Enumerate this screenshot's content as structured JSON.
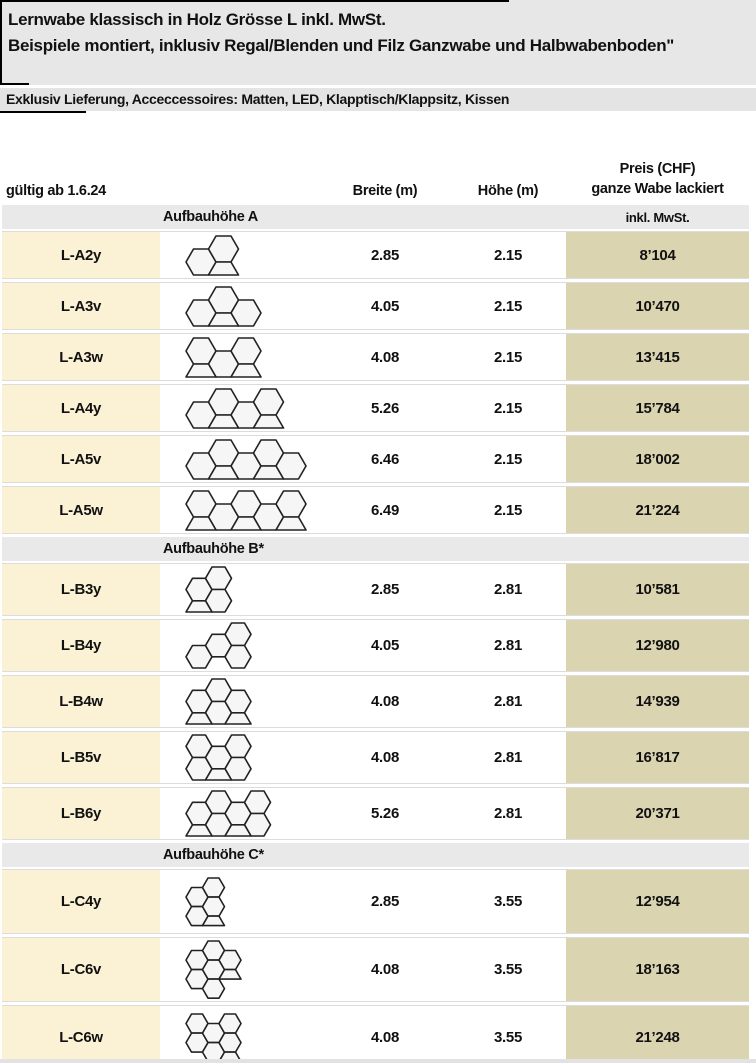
{
  "header": {
    "title_line1": "Lernwabe klassisch in Holz Grösse L inkl. MwSt.",
    "title_line2": "Beispiele montiert, inklusiv Regal/Blenden und Filz Ganzwabe und Halbwabenboden\"",
    "subtitle": "Exklusiv Lieferung, Acceccessoires: Matten, LED, Klapptisch/Klappsitz, Kissen"
  },
  "table": {
    "valid_from_label": "gültig ab 1.6.24",
    "columns": {
      "breite": "Breite (m)",
      "hoehe": "Höhe (m)",
      "preis_line1": "Preis (CHF)",
      "preis_line2": "ganze Wabe lackiert"
    },
    "sections": [
      {
        "label": "Aufbauhöhe A",
        "note": "inkl. MwSt.",
        "rows": [
          {
            "code": "L-A2y",
            "breite": "2.85",
            "hoehe": "2.15",
            "preis": "8’104",
            "hexes": [
              [
                0,
                0.5
              ],
              [
                1,
                0
              ]
            ],
            "feet": [
              [
                1,
                1
              ]
            ]
          },
          {
            "code": "L-A3v",
            "breite": "4.05",
            "hoehe": "2.15",
            "preis": "10’470",
            "hexes": [
              [
                0,
                0.5
              ],
              [
                1,
                0
              ],
              [
                2,
                0.5
              ]
            ],
            "feet": [
              [
                1,
                1
              ]
            ]
          },
          {
            "code": "L-A3w",
            "breite": "4.08",
            "hoehe": "2.15",
            "preis": "13’415",
            "hexes": [
              [
                0,
                0
              ],
              [
                1,
                0.5
              ],
              [
                2,
                0
              ]
            ],
            "feet": [
              [
                0,
                1
              ],
              [
                2,
                1
              ]
            ]
          },
          {
            "code": "L-A4y",
            "breite": "5.26",
            "hoehe": "2.15",
            "preis": "15’784",
            "hexes": [
              [
                0,
                0.5
              ],
              [
                1,
                0
              ],
              [
                2,
                0.5
              ],
              [
                3,
                0
              ]
            ],
            "feet": [
              [
                1,
                1
              ],
              [
                3,
                1
              ]
            ]
          },
          {
            "code": "L-A5v",
            "breite": "6.46",
            "hoehe": "2.15",
            "preis": "18’002",
            "hexes": [
              [
                0,
                0.5
              ],
              [
                1,
                0
              ],
              [
                2,
                0.5
              ],
              [
                3,
                0
              ],
              [
                4,
                0.5
              ]
            ],
            "feet": [
              [
                1,
                1
              ],
              [
                3,
                1
              ]
            ]
          },
          {
            "code": "L-A5w",
            "breite": "6.49",
            "hoehe": "2.15",
            "preis": "21’224",
            "hexes": [
              [
                0,
                0
              ],
              [
                1,
                0.5
              ],
              [
                2,
                0
              ],
              [
                3,
                0.5
              ],
              [
                4,
                0
              ]
            ],
            "feet": [
              [
                0,
                1
              ],
              [
                2,
                1
              ],
              [
                4,
                1
              ]
            ]
          }
        ]
      },
      {
        "label": "Aufbauhöhe B*",
        "note": "",
        "rows": [
          {
            "code": "L-B3y",
            "breite": "2.85",
            "hoehe": "2.81",
            "preis": "10’581",
            "hexes": [
              [
                0,
                0.5
              ],
              [
                1,
                0
              ],
              [
                1,
                1
              ]
            ],
            "feet": [
              [
                0,
                1.5
              ]
            ]
          },
          {
            "code": "L-B4y",
            "breite": "4.05",
            "hoehe": "2.81",
            "preis": "12’980",
            "hexes": [
              [
                0,
                1
              ],
              [
                1,
                0.5
              ],
              [
                2,
                0
              ],
              [
                2,
                1
              ]
            ],
            "feet": []
          },
          {
            "code": "L-B4w",
            "breite": "4.08",
            "hoehe": "2.81",
            "preis": "14’939",
            "hexes": [
              [
                0,
                0.5
              ],
              [
                1,
                0
              ],
              [
                1,
                1
              ],
              [
                2,
                0.5
              ]
            ],
            "feet": [
              [
                0,
                1.5
              ],
              [
                2,
                1.5
              ]
            ]
          },
          {
            "code": "L-B5v",
            "breite": "4.08",
            "hoehe": "2.81",
            "preis": "16’817",
            "hexes": [
              [
                0,
                0
              ],
              [
                0,
                1
              ],
              [
                1,
                0.5
              ],
              [
                2,
                0
              ],
              [
                2,
                1
              ]
            ],
            "feet": [
              [
                1,
                1.5
              ]
            ]
          },
          {
            "code": "L-B6y",
            "breite": "5.26",
            "hoehe": "2.81",
            "preis": "20’371",
            "hexes": [
              [
                0,
                0.5
              ],
              [
                1,
                0
              ],
              [
                1,
                1
              ],
              [
                2,
                0.5
              ],
              [
                3,
                0
              ],
              [
                3,
                1
              ]
            ],
            "feet": [
              [
                0,
                1.5
              ],
              [
                2,
                1.5
              ]
            ]
          }
        ]
      },
      {
        "label": "Aufbauhöhe C*",
        "note": "",
        "rows": [
          {
            "code": "L-C4y",
            "breite": "2.85",
            "hoehe": "3.55",
            "preis": "12’954",
            "hexes": [
              [
                0,
                0.5
              ],
              [
                0,
                1.5
              ],
              [
                1,
                0
              ],
              [
                1,
                1
              ]
            ],
            "feet": [
              [
                1,
                2
              ]
            ]
          },
          {
            "code": "L-C6v",
            "breite": "4.08",
            "hoehe": "3.55",
            "preis": "18’163",
            "hexes": [
              [
                0,
                0.5
              ],
              [
                0,
                1.5
              ],
              [
                1,
                0
              ],
              [
                1,
                1
              ],
              [
                1,
                2
              ],
              [
                2,
                0.5
              ]
            ],
            "feet": [
              [
                2,
                1.5
              ]
            ]
          },
          {
            "code": "L-C6w",
            "breite": "4.08",
            "hoehe": "3.55",
            "preis": "21’248",
            "hexes": [
              [
                0,
                0
              ],
              [
                0,
                1
              ],
              [
                1,
                0.5
              ],
              [
                1,
                1.5
              ],
              [
                2,
                0
              ],
              [
                2,
                1
              ]
            ],
            "feet": [
              [
                2,
                2
              ]
            ]
          }
        ]
      }
    ]
  },
  "colors": {
    "model_column_bg": "#fbf2d5",
    "price_column_bg": "#dbd4b1",
    "section_row_bg": "#e9e9e9",
    "header_bg": "#e7e7e7",
    "text": "#111111"
  }
}
